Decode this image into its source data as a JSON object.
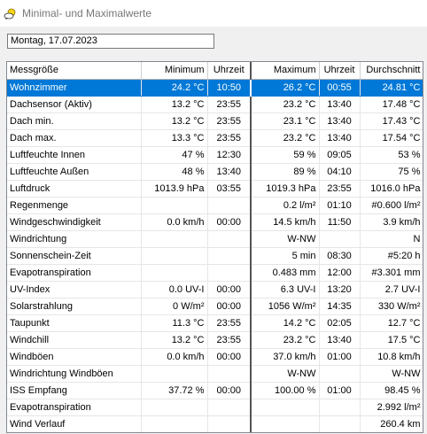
{
  "window": {
    "title": "Minimal- und Maximalwerte"
  },
  "date_field": {
    "value": "Montag, 17.07.2023"
  },
  "table": {
    "headers": [
      "Messgröße",
      "Minimum",
      "Uhrzeit",
      "Maximum",
      "Uhrzeit",
      "Durchschnitt"
    ],
    "rows": [
      [
        "Wohnzimmer",
        "24.2 °C",
        "10:50",
        "26.2 °C",
        "00:55",
        "24.81 °C"
      ],
      [
        "Dachsensor (Aktiv)",
        "13.2 °C",
        "23:55",
        "23.2 °C",
        "13:40",
        "17.48 °C"
      ],
      [
        "Dach min.",
        "13.2 °C",
        "23:55",
        "23.1 °C",
        "13:40",
        "17.43 °C"
      ],
      [
        "Dach max.",
        "13.3 °C",
        "23:55",
        "23.2 °C",
        "13:40",
        "17.54 °C"
      ],
      [
        "Luftfeuchte Innen",
        "47 %",
        "12:30",
        "59 %",
        "09:05",
        "53 %"
      ],
      [
        "Luftfeuchte Außen",
        "48 %",
        "13:40",
        "89 %",
        "04:10",
        "75 %"
      ],
      [
        "Luftdruck",
        "1013.9 hPa",
        "03:55",
        "1019.3 hPa",
        "23:55",
        "1016.0 hPa"
      ],
      [
        "Regenmenge",
        "",
        "",
        "0.2 l/m²",
        "01:10",
        "#0.600 l/m²"
      ],
      [
        "Windgeschwindigkeit",
        "0.0 km/h",
        "00:00",
        "14.5 km/h",
        "11:50",
        "3.9 km/h"
      ],
      [
        "Windrichtung",
        "",
        "",
        "W-NW",
        "",
        "N"
      ],
      [
        "Sonnenschein-Zeit",
        "",
        "",
        "5 min",
        "08:30",
        "#5:20 h"
      ],
      [
        "Evapotranspiration",
        "",
        "",
        "0.483 mm",
        "12:00",
        "#3.301 mm"
      ],
      [
        "UV-Index",
        "0.0 UV-I",
        "00:00",
        "6.3 UV-I",
        "13:20",
        "2.7 UV-I"
      ],
      [
        "Solarstrahlung",
        "0 W/m²",
        "00:00",
        "1056 W/m²",
        "14:35",
        "330 W/m²"
      ],
      [
        "Taupunkt",
        "11.3 °C",
        "23:55",
        "14.2 °C",
        "02:05",
        "12.7 °C"
      ],
      [
        "Windchill",
        "13.2 °C",
        "23:55",
        "23.2 °C",
        "13:40",
        "17.5 °C"
      ],
      [
        "Windböen",
        "0.0 km/h",
        "00:00",
        "37.0 km/h",
        "01:00",
        "10.8 km/h"
      ],
      [
        "Windrichtung Windböen",
        "",
        "",
        "W-NW",
        "",
        "W-NW"
      ],
      [
        "ISS Empfang",
        "37.72 %",
        "00:00",
        "100.00 %",
        "01:00",
        "98.45 %"
      ],
      [
        "Evapotranspiration",
        "",
        "",
        "",
        "",
        "2.992 l/m²"
      ],
      [
        "Wind Verlauf",
        "",
        "",
        "",
        "",
        "260.4 km"
      ]
    ],
    "selected_row": 0
  }
}
